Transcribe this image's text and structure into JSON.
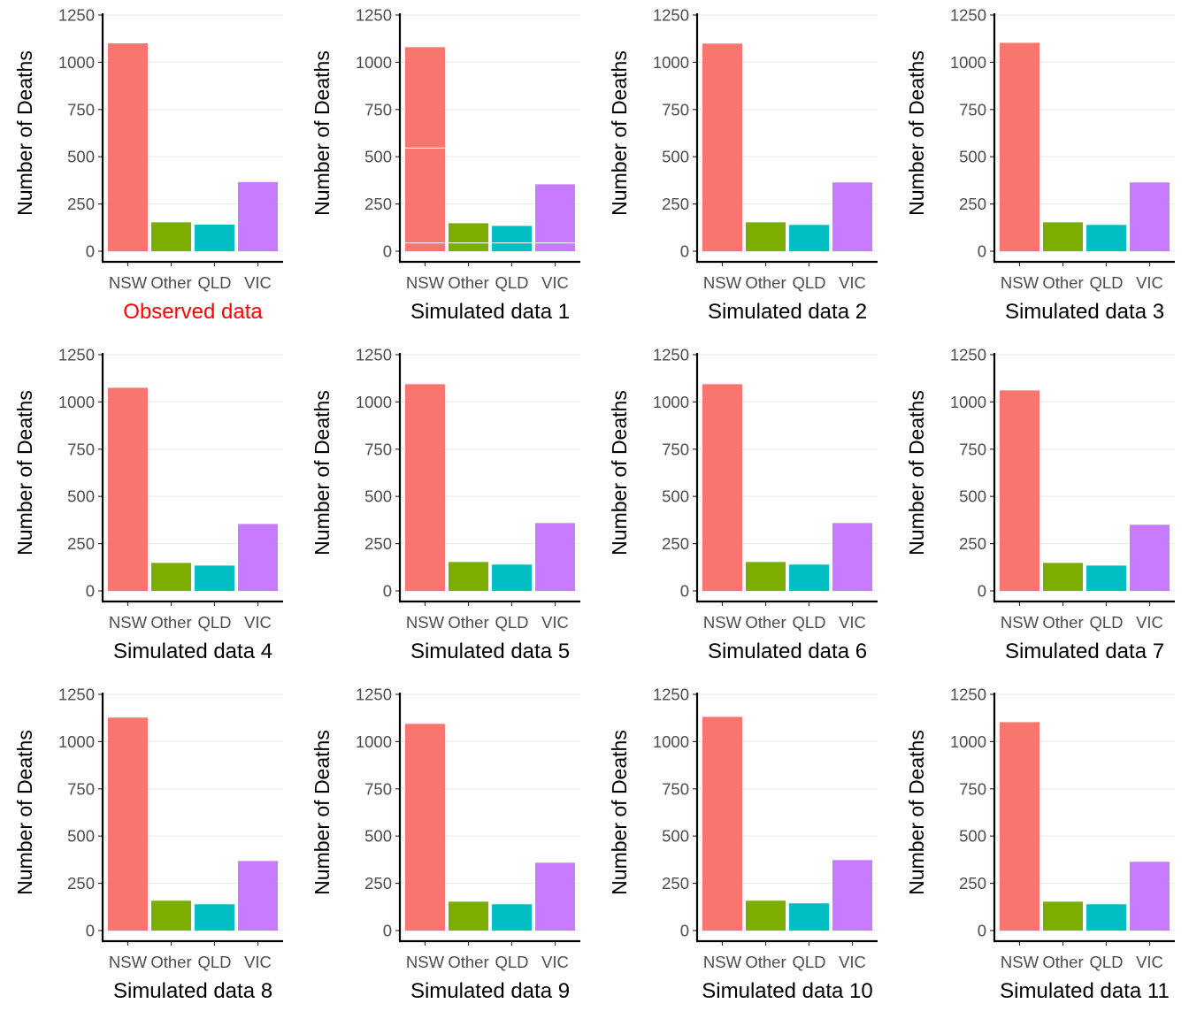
{
  "chart_data": [
    {
      "type": "bar",
      "title": "Observed data",
      "title_color": "#ff0000",
      "xlabel": "",
      "ylabel": "Number of Deaths",
      "categories": [
        "NSW",
        "Other",
        "QLD",
        "VIC"
      ],
      "values": [
        1100,
        153,
        141,
        366
      ],
      "ylim": [
        0,
        1250
      ],
      "yticks": [
        "0",
        "250",
        "500",
        "750",
        "1000",
        "1250"
      ],
      "grid": true,
      "legend": "none"
    },
    {
      "type": "bar",
      "title": "Simulated data 1",
      "title_color": "#000000",
      "xlabel": "",
      "ylabel": "Number of Deaths",
      "categories": [
        "NSW",
        "Other",
        "QLD",
        "VIC"
      ],
      "values": [
        1080,
        148,
        134,
        354
      ],
      "ylim": [
        0,
        1250
      ],
      "yticks": [
        "0",
        "250",
        "500",
        "750",
        "1000",
        "1250"
      ],
      "grid": true,
      "legend": "none",
      "segment_breaks": [
        44,
        546
      ]
    },
    {
      "type": "bar",
      "title": "Simulated data 2",
      "title_color": "#000000",
      "xlabel": "",
      "ylabel": "Number of Deaths",
      "categories": [
        "NSW",
        "Other",
        "QLD",
        "VIC"
      ],
      "values": [
        1099,
        153,
        139,
        364
      ],
      "ylim": [
        0,
        1250
      ],
      "yticks": [
        "0",
        "250",
        "500",
        "750",
        "1000",
        "1250"
      ],
      "grid": true,
      "legend": "none"
    },
    {
      "type": "bar",
      "title": "Simulated data 3",
      "title_color": "#000000",
      "xlabel": "",
      "ylabel": "Number of Deaths",
      "categories": [
        "NSW",
        "Other",
        "QLD",
        "VIC"
      ],
      "values": [
        1103,
        153,
        139,
        364
      ],
      "ylim": [
        0,
        1250
      ],
      "yticks": [
        "0",
        "250",
        "500",
        "750",
        "1000",
        "1250"
      ],
      "grid": true,
      "legend": "none"
    },
    {
      "type": "bar",
      "title": "Simulated data 4",
      "title_color": "#000000",
      "xlabel": "",
      "ylabel": "Number of Deaths",
      "categories": [
        "NSW",
        "Other",
        "QLD",
        "VIC"
      ],
      "values": [
        1075,
        148,
        134,
        354
      ],
      "ylim": [
        0,
        1250
      ],
      "yticks": [
        "0",
        "250",
        "500",
        "750",
        "1000",
        "1250"
      ],
      "grid": true,
      "legend": "none"
    },
    {
      "type": "bar",
      "title": "Simulated data 5",
      "title_color": "#000000",
      "xlabel": "",
      "ylabel": "Number of Deaths",
      "categories": [
        "NSW",
        "Other",
        "QLD",
        "VIC"
      ],
      "values": [
        1094,
        153,
        139,
        359
      ],
      "ylim": [
        0,
        1250
      ],
      "yticks": [
        "0",
        "250",
        "500",
        "750",
        "1000",
        "1250"
      ],
      "grid": true,
      "legend": "none"
    },
    {
      "type": "bar",
      "title": "Simulated data 6",
      "title_color": "#000000",
      "xlabel": "",
      "ylabel": "Number of Deaths",
      "categories": [
        "NSW",
        "Other",
        "QLD",
        "VIC"
      ],
      "values": [
        1094,
        153,
        139,
        359
      ],
      "ylim": [
        0,
        1250
      ],
      "yticks": [
        "0",
        "250",
        "500",
        "750",
        "1000",
        "1250"
      ],
      "grid": true,
      "legend": "none"
    },
    {
      "type": "bar",
      "title": "Simulated data 7",
      "title_color": "#000000",
      "xlabel": "",
      "ylabel": "Number of Deaths",
      "categories": [
        "NSW",
        "Other",
        "QLD",
        "VIC"
      ],
      "values": [
        1061,
        148,
        134,
        350
      ],
      "ylim": [
        0,
        1250
      ],
      "yticks": [
        "0",
        "250",
        "500",
        "750",
        "1000",
        "1250"
      ],
      "grid": true,
      "legend": "none"
    },
    {
      "type": "bar",
      "title": "Simulated data 8",
      "title_color": "#000000",
      "xlabel": "",
      "ylabel": "Number of Deaths",
      "categories": [
        "NSW",
        "Other",
        "QLD",
        "VIC"
      ],
      "values": [
        1127,
        158,
        139,
        368
      ],
      "ylim": [
        0,
        1250
      ],
      "yticks": [
        "0",
        "250",
        "500",
        "750",
        "1000",
        "1250"
      ],
      "grid": true,
      "legend": "none"
    },
    {
      "type": "bar",
      "title": "Simulated data 9",
      "title_color": "#000000",
      "xlabel": "",
      "ylabel": "Number of Deaths",
      "categories": [
        "NSW",
        "Other",
        "QLD",
        "VIC"
      ],
      "values": [
        1094,
        153,
        139,
        359
      ],
      "ylim": [
        0,
        1250
      ],
      "yticks": [
        "0",
        "250",
        "500",
        "750",
        "1000",
        "1250"
      ],
      "grid": true,
      "legend": "none"
    },
    {
      "type": "bar",
      "title": "Simulated data 10",
      "title_color": "#000000",
      "xlabel": "",
      "ylabel": "Number of Deaths",
      "categories": [
        "NSW",
        "Other",
        "QLD",
        "VIC"
      ],
      "values": [
        1131,
        158,
        144,
        373
      ],
      "ylim": [
        0,
        1250
      ],
      "yticks": [
        "0",
        "250",
        "500",
        "750",
        "1000",
        "1250"
      ],
      "grid": true,
      "legend": "none"
    },
    {
      "type": "bar",
      "title": "Simulated data 11",
      "title_color": "#000000",
      "xlabel": "",
      "ylabel": "Number of Deaths",
      "categories": [
        "NSW",
        "Other",
        "QLD",
        "VIC"
      ],
      "values": [
        1103,
        153,
        139,
        364
      ],
      "ylim": [
        0,
        1250
      ],
      "yticks": [
        "0",
        "250",
        "500",
        "750",
        "1000",
        "1250"
      ],
      "grid": true,
      "legend": "none"
    }
  ],
  "colors": {
    "NSW": "#f8766d",
    "Other": "#7cae00",
    "QLD": "#00bfc4",
    "VIC": "#c77cff",
    "gridline": "#ebebeb",
    "axis": "#000000"
  }
}
